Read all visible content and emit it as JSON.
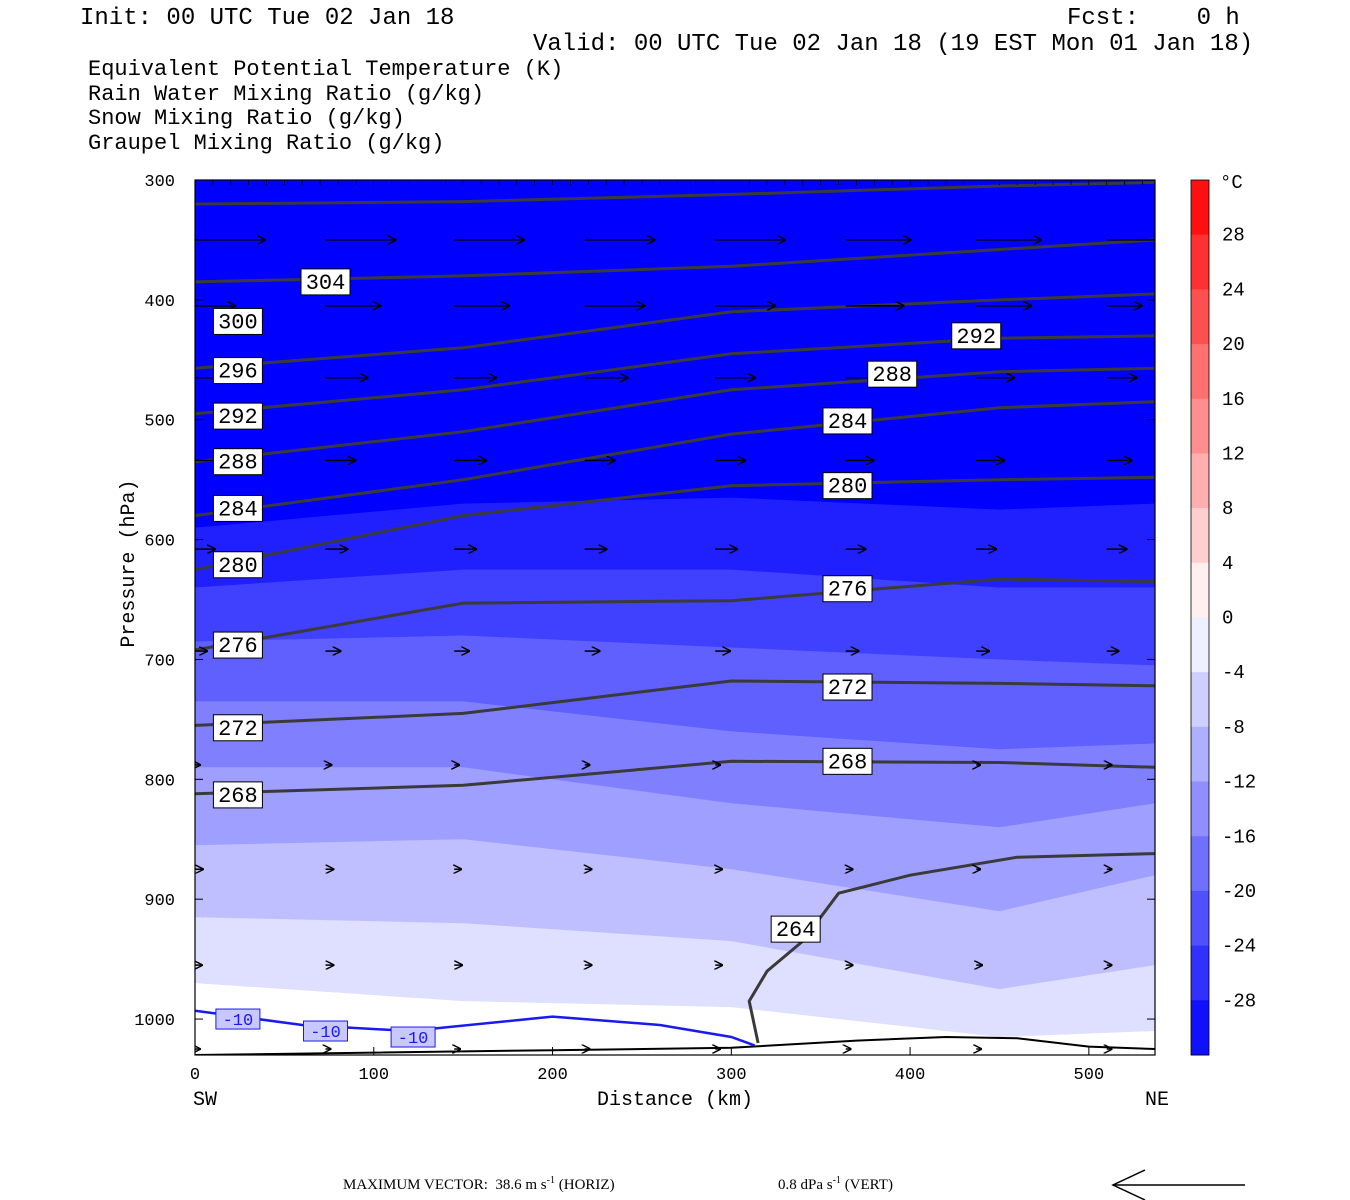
{
  "header": {
    "init": "Init: 00 UTC Tue 02 Jan 18",
    "fcst": "Fcst:    0 h",
    "valid": "Valid: 00 UTC Tue 02 Jan 18 (19 EST Mon 01 Jan 18)"
  },
  "legend": {
    "theta_e": "Equivalent Potential Temperature (K)",
    "rain": "Rain Water Mixing Ratio (g/kg)",
    "snow": "Snow Mixing Ratio (g/kg)",
    "graupel": "Graupel Mixing Ratio (g/kg)"
  },
  "colors": {
    "theta_e": "#555555",
    "rain": "#0a7a0a",
    "snow": "#f08a5a",
    "graupel": "#ee7ee8",
    "contour_line": "#3a3a3a",
    "isotherm": "#1a1aee"
  },
  "footer": {
    "prefix": "MAXIMUM VECTOR:",
    "horiz_value": "38.6 m s",
    "horiz_suffix": " (HORIZ)",
    "vert_value": "0.8 dPa s",
    "vert_suffix": " (VERT)",
    "exponent": "-1"
  },
  "chart_data": {
    "type": "cross-section",
    "xlabel": "Distance (km)",
    "ylabel": "Pressure (hPa)",
    "x_left_label": "SW",
    "x_right_label": "NE",
    "xlim": [
      0,
      537
    ],
    "ylim": [
      1030,
      300
    ],
    "x_ticks": [
      0,
      100,
      200,
      300,
      400,
      500
    ],
    "y_ticks": [
      300,
      400,
      500,
      600,
      700,
      800,
      900,
      1000
    ],
    "y_scale": "linear",
    "colorbar": {
      "unit": "°C",
      "min": -32,
      "max": 32,
      "step": 4,
      "tick_labels": [
        28,
        24,
        20,
        16,
        12,
        8,
        4,
        0,
        -4,
        -8,
        -12,
        -16,
        -20,
        -24,
        -28
      ]
    },
    "temperature_field": [
      {
        "label": "-32",
        "boundary": [
          [
            0,
            590
          ],
          [
            150,
            570
          ],
          [
            300,
            565
          ],
          [
            450,
            575
          ],
          [
            537,
            570
          ]
        ]
      },
      {
        "label": "-28",
        "boundary": [
          [
            0,
            640
          ],
          [
            150,
            625
          ],
          [
            300,
            625
          ],
          [
            450,
            640
          ],
          [
            537,
            640
          ]
        ]
      },
      {
        "label": "-24",
        "boundary": [
          [
            0,
            685
          ],
          [
            150,
            680
          ],
          [
            300,
            690
          ],
          [
            450,
            700
          ],
          [
            537,
            705
          ]
        ]
      },
      {
        "label": "-20",
        "boundary": [
          [
            0,
            735
          ],
          [
            150,
            735
          ],
          [
            300,
            760
          ],
          [
            450,
            775
          ],
          [
            537,
            770
          ]
        ]
      },
      {
        "label": "-16",
        "boundary": [
          [
            0,
            790
          ],
          [
            150,
            790
          ],
          [
            300,
            820
          ],
          [
            450,
            840
          ],
          [
            537,
            820
          ]
        ]
      },
      {
        "label": "-12",
        "boundary": [
          [
            0,
            855
          ],
          [
            150,
            850
          ],
          [
            300,
            875
          ],
          [
            450,
            910
          ],
          [
            537,
            880
          ]
        ]
      },
      {
        "label": "-8",
        "boundary": [
          [
            0,
            915
          ],
          [
            150,
            920
          ],
          [
            300,
            935
          ],
          [
            450,
            975
          ],
          [
            537,
            955
          ]
        ]
      },
      {
        "label": "-4",
        "boundary": [
          [
            0,
            970
          ],
          [
            150,
            985
          ],
          [
            300,
            990
          ],
          [
            450,
            1015
          ],
          [
            537,
            1010
          ]
        ]
      }
    ],
    "theta_e_contours": [
      {
        "label": "304",
        "points": [
          [
            0,
            320
          ],
          [
            150,
            318
          ],
          [
            300,
            312
          ],
          [
            450,
            305
          ],
          [
            537,
            302
          ]
        ]
      },
      {
        "label": "300",
        "points": [
          [
            0,
            385
          ],
          [
            150,
            380
          ],
          [
            300,
            372
          ],
          [
            450,
            358
          ],
          [
            537,
            350
          ]
        ]
      },
      {
        "label": "296",
        "points": [
          [
            0,
            457
          ],
          [
            150,
            440
          ],
          [
            300,
            410
          ],
          [
            450,
            400
          ],
          [
            537,
            395
          ]
        ]
      },
      {
        "label": "292",
        "points": [
          [
            0,
            495
          ],
          [
            150,
            475
          ],
          [
            300,
            445
          ],
          [
            450,
            432
          ],
          [
            537,
            430
          ]
        ]
      },
      {
        "label": "288",
        "points": [
          [
            0,
            535
          ],
          [
            150,
            510
          ],
          [
            300,
            475
          ],
          [
            450,
            460
          ],
          [
            537,
            457
          ]
        ]
      },
      {
        "label": "284",
        "points": [
          [
            0,
            580
          ],
          [
            150,
            550
          ],
          [
            300,
            512
          ],
          [
            450,
            490
          ],
          [
            537,
            485
          ]
        ]
      },
      {
        "label": "280",
        "points": [
          [
            0,
            625
          ],
          [
            150,
            580
          ],
          [
            300,
            555
          ],
          [
            450,
            550
          ],
          [
            537,
            548
          ]
        ]
      },
      {
        "label": "276",
        "points": [
          [
            0,
            692
          ],
          [
            150,
            653
          ],
          [
            300,
            651
          ],
          [
            450,
            633
          ],
          [
            537,
            635
          ]
        ]
      },
      {
        "label": "272",
        "points": [
          [
            0,
            755
          ],
          [
            150,
            745
          ],
          [
            300,
            718
          ],
          [
            450,
            720
          ],
          [
            537,
            722
          ]
        ]
      },
      {
        "label": "268",
        "points": [
          [
            0,
            812
          ],
          [
            150,
            805
          ],
          [
            300,
            785
          ],
          [
            450,
            786
          ],
          [
            537,
            790
          ]
        ]
      },
      {
        "label": "264",
        "points": [
          [
            315,
            1020
          ],
          [
            310,
            985
          ],
          [
            320,
            960
          ],
          [
            340,
            935
          ],
          [
            360,
            895
          ],
          [
            400,
            880
          ],
          [
            460,
            865
          ],
          [
            537,
            862
          ]
        ]
      }
    ],
    "theta_e_labels": [
      {
        "text": "304",
        "x": 73,
        "y": 385
      },
      {
        "text": "300",
        "x": 24,
        "y": 418
      },
      {
        "text": "296",
        "x": 24,
        "y": 459
      },
      {
        "text": "292",
        "x": 24,
        "y": 497
      },
      {
        "text": "288",
        "x": 24,
        "y": 535
      },
      {
        "text": "284",
        "x": 24,
        "y": 574
      },
      {
        "text": "280",
        "x": 24,
        "y": 621
      },
      {
        "text": "276",
        "x": 24,
        "y": 688
      },
      {
        "text": "272",
        "x": 24,
        "y": 757
      },
      {
        "text": "268",
        "x": 24,
        "y": 813
      },
      {
        "text": "292",
        "x": 437,
        "y": 430
      },
      {
        "text": "288",
        "x": 390,
        "y": 462
      },
      {
        "text": "284",
        "x": 365,
        "y": 501
      },
      {
        "text": "280",
        "x": 365,
        "y": 555
      },
      {
        "text": "276",
        "x": 365,
        "y": 641
      },
      {
        "text": "272",
        "x": 365,
        "y": 723
      },
      {
        "text": "268",
        "x": 365,
        "y": 785
      },
      {
        "text": "264",
        "x": 336,
        "y": 925
      }
    ],
    "isotherm": {
      "label": "-10",
      "points": [
        [
          0,
          993
        ],
        [
          60,
          1005
        ],
        [
          120,
          1010
        ],
        [
          200,
          998
        ],
        [
          260,
          1005
        ],
        [
          300,
          1015
        ],
        [
          313,
          1022
        ]
      ],
      "labels": [
        {
          "text": "-10",
          "x": 24,
          "y": 1000
        },
        {
          "text": "-10",
          "x": 73,
          "y": 1010
        },
        {
          "text": "-10",
          "x": 122,
          "y": 1015
        }
      ]
    },
    "terrain": [
      [
        0,
        1030
      ],
      [
        100,
        1028
      ],
      [
        200,
        1026
      ],
      [
        300,
        1024
      ],
      [
        370,
        1018
      ],
      [
        420,
        1015
      ],
      [
        460,
        1016
      ],
      [
        500,
        1023
      ],
      [
        537,
        1025
      ]
    ],
    "wind_rows": [
      {
        "p": 350,
        "x": [
          0,
          73,
          145,
          218,
          291,
          364,
          437,
          510
        ],
        "len": [
          70,
          70,
          70,
          70,
          70,
          65,
          65,
          55
        ]
      },
      {
        "p": 405,
        "x": [
          0,
          73,
          145,
          218,
          291,
          364,
          437,
          510
        ],
        "len": [
          40,
          55,
          55,
          60,
          60,
          58,
          55,
          35
        ]
      },
      {
        "p": 465,
        "x": [
          0,
          73,
          145,
          218,
          291,
          364,
          437,
          510
        ],
        "len": [
          40,
          42,
          42,
          43,
          40,
          42,
          38,
          30
        ]
      },
      {
        "p": 534,
        "x": [
          0,
          73,
          145,
          218,
          291,
          364,
          437,
          510
        ],
        "len": [
          30,
          30,
          32,
          30,
          30,
          28,
          28,
          25
        ]
      },
      {
        "p": 608,
        "x": [
          0,
          73,
          145,
          218,
          291,
          364,
          437,
          510
        ],
        "len": [
          20,
          22,
          22,
          22,
          22,
          20,
          20,
          20
        ]
      },
      {
        "p": 693,
        "x": [
          0,
          73,
          145,
          218,
          291,
          364,
          437,
          510
        ],
        "len": [
          12,
          15,
          15,
          15,
          15,
          13,
          13,
          12
        ]
      },
      {
        "p": 788,
        "x": [
          0,
          73,
          145,
          218,
          291,
          364,
          437,
          510
        ],
        "len": [
          5,
          6,
          5,
          5,
          5,
          5,
          4,
          5
        ]
      },
      {
        "p": 875,
        "x": [
          0,
          73,
          145,
          218,
          291,
          364,
          437,
          510
        ],
        "len": [
          8,
          8,
          7,
          7,
          7,
          7,
          4,
          5
        ]
      },
      {
        "p": 955,
        "x": [
          0,
          73,
          145,
          218,
          291,
          364,
          437,
          510
        ],
        "len": [
          7,
          8,
          8,
          7,
          7,
          7,
          6,
          5
        ]
      },
      {
        "p": 1025,
        "x": [
          0,
          73,
          145,
          218,
          291,
          364,
          437,
          510
        ],
        "len": [
          5,
          5,
          6,
          5,
          5,
          5,
          5,
          5
        ]
      }
    ]
  }
}
